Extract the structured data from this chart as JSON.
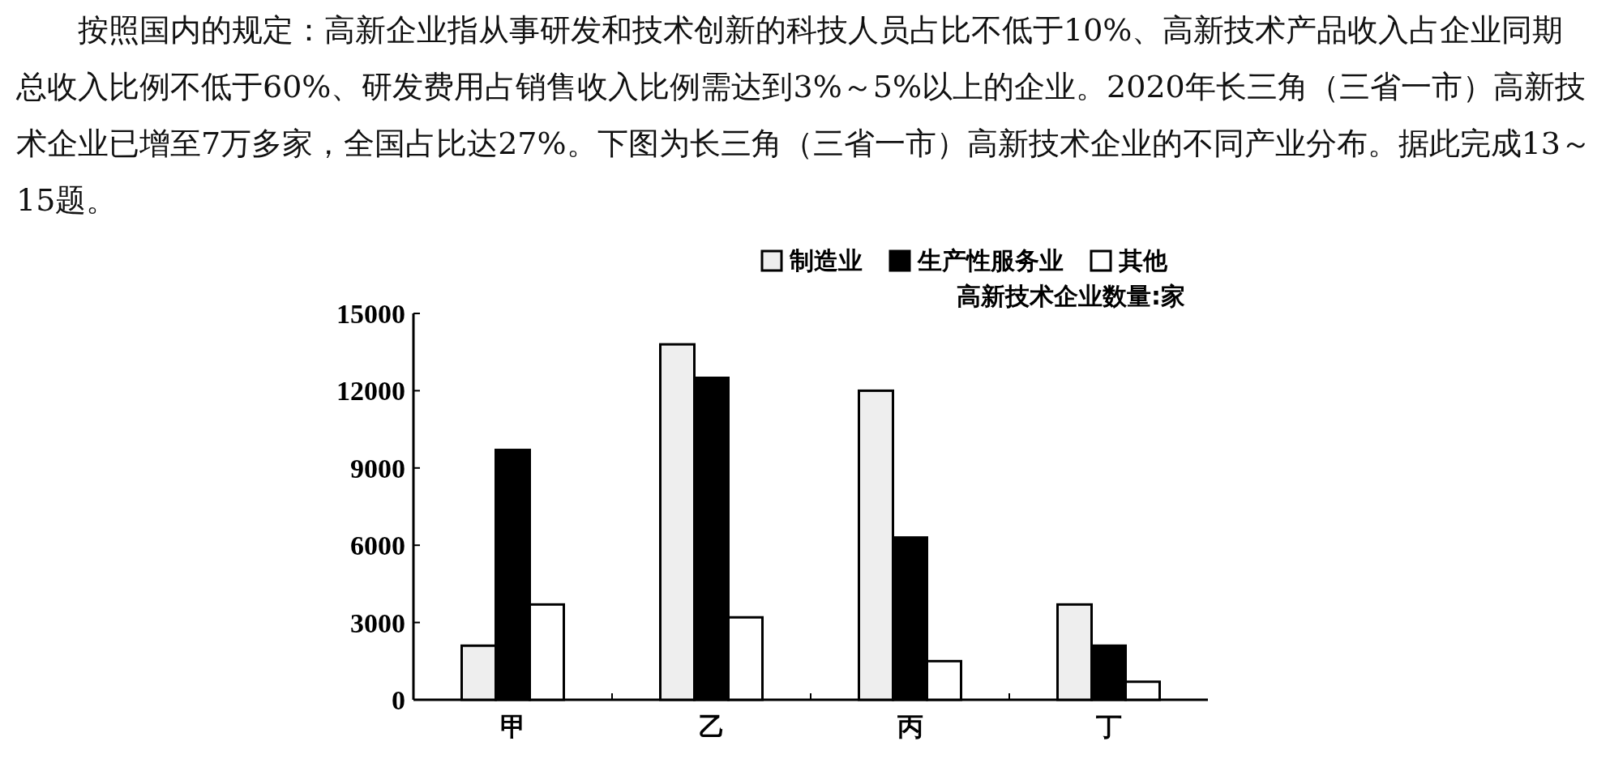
{
  "chart_data": {
    "type": "bar",
    "annotations": [
      "按照国内的规定：高新企业指从事研发和技术创新的科技人员占比不低于10%、高新技术产品收入占企业同期总收入比例不低于60%、研发费用占销售收入比例需达到3%～5%以上的企业。2020年长三角（三省一市）高新技术企业已增至7万多家，全国占比达27%。下图为长三角（三省一市）高新技术企业的不同产业分布。据此完成13～15题。"
    ],
    "ylabel": "高新技术企业数量:家",
    "categories": [
      "甲",
      "乙",
      "丙",
      "丁"
    ],
    "series": [
      {
        "name": "制造业",
        "color": "#eeeeee",
        "values": [
          2100,
          13800,
          12000,
          3700
        ]
      },
      {
        "name": "生产性服务业",
        "color": "#000000",
        "values": [
          9700,
          12500,
          6300,
          2100
        ]
      },
      {
        "name": "其他",
        "color": "#ffffff",
        "values": [
          3700,
          3200,
          1500,
          700
        ]
      }
    ],
    "ylim": [
      0,
      15000
    ],
    "yticks": [
      0,
      3000,
      6000,
      9000,
      12000,
      15000
    ],
    "legend": "top right"
  }
}
